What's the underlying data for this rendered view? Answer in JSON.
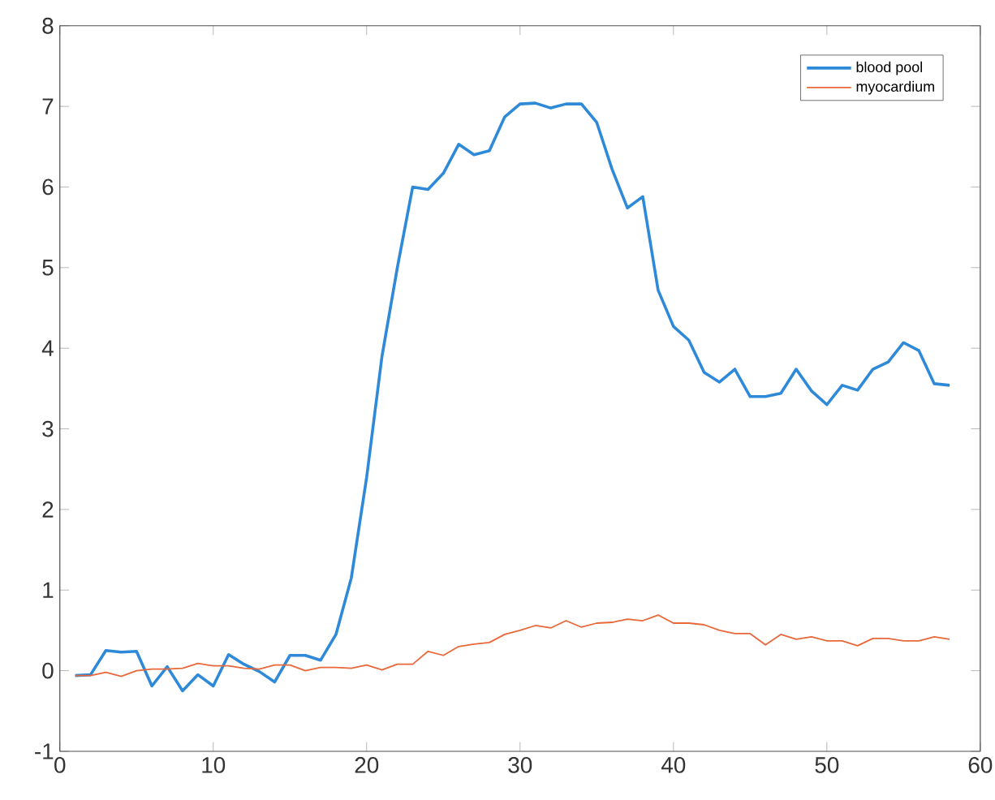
{
  "chart_data": {
    "type": "line",
    "x": [
      1,
      2,
      3,
      4,
      5,
      6,
      7,
      8,
      9,
      10,
      11,
      12,
      13,
      14,
      15,
      16,
      17,
      18,
      19,
      20,
      21,
      22,
      23,
      24,
      25,
      26,
      27,
      28,
      29,
      30,
      31,
      32,
      33,
      34,
      35,
      36,
      37,
      38,
      39,
      40,
      41,
      42,
      43,
      44,
      45,
      46,
      47,
      48,
      49,
      50,
      51,
      52,
      53,
      54,
      55,
      56,
      57,
      58
    ],
    "series": [
      {
        "name": "blood pool",
        "color": "#2e8ad8",
        "values": [
          -0.06,
          -0.05,
          0.25,
          0.23,
          0.24,
          -0.19,
          0.05,
          -0.25,
          -0.05,
          -0.19,
          0.2,
          0.08,
          -0.01,
          -0.14,
          0.19,
          0.19,
          0.13,
          0.45,
          1.15,
          2.4,
          3.9,
          5.0,
          6.0,
          5.97,
          6.17,
          6.53,
          6.4,
          6.45,
          6.87,
          7.03,
          7.04,
          6.98,
          7.03,
          7.03,
          6.8,
          6.22,
          5.74,
          5.88,
          4.72,
          4.27,
          4.1,
          3.7,
          3.58,
          3.74,
          3.4,
          3.4,
          3.44,
          3.74,
          3.47,
          3.3,
          3.54,
          3.48,
          3.74,
          3.83,
          4.07,
          3.97,
          3.56,
          3.54
        ]
      },
      {
        "name": "myocardium",
        "color": "#e8683a",
        "values": [
          -0.06,
          -0.06,
          -0.02,
          -0.07,
          0.0,
          0.02,
          0.02,
          0.03,
          0.09,
          0.06,
          0.06,
          0.03,
          0.02,
          0.07,
          0.07,
          0.0,
          0.04,
          0.04,
          0.03,
          0.07,
          0.01,
          0.08,
          0.08,
          0.24,
          0.19,
          0.3,
          0.33,
          0.35,
          0.45,
          0.5,
          0.56,
          0.53,
          0.62,
          0.54,
          0.59,
          0.6,
          0.64,
          0.62,
          0.69,
          0.59,
          0.59,
          0.57,
          0.5,
          0.46,
          0.46,
          0.32,
          0.45,
          0.39,
          0.42,
          0.37,
          0.37,
          0.31,
          0.4,
          0.4,
          0.37,
          0.37,
          0.42,
          0.39
        ]
      }
    ],
    "xlim": [
      0,
      60
    ],
    "ylim": [
      -1,
      8
    ],
    "xticks": [
      0,
      10,
      20,
      30,
      40,
      50,
      60
    ],
    "yticks": [
      -1,
      0,
      1,
      2,
      3,
      4,
      5,
      6,
      7,
      8
    ],
    "legend": "top right",
    "grid": false,
    "marker": "none",
    "line_style": "solid"
  }
}
